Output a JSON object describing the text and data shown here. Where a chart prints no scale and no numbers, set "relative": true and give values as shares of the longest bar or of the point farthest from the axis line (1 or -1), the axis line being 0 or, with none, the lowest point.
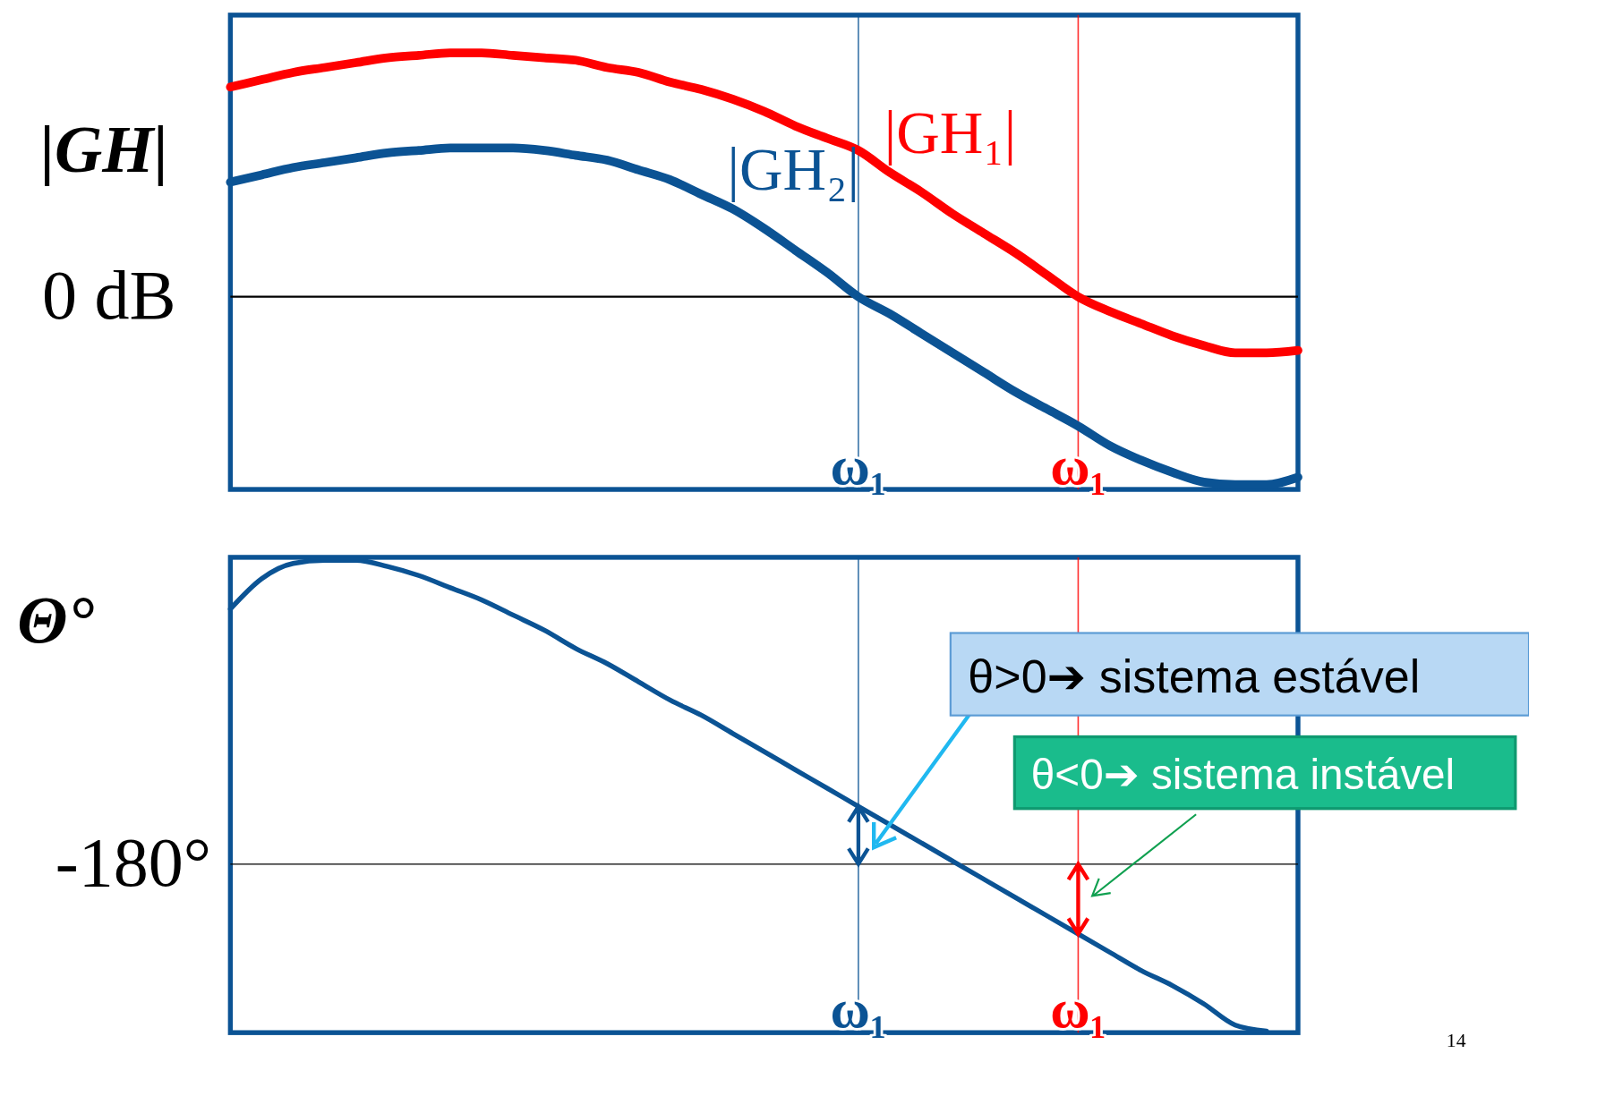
{
  "chart_data": [
    {
      "type": "line",
      "relative": true,
      "ylabel": "|GH|",
      "categories": [
        null,
        null,
        null,
        null,
        null,
        null,
        null,
        null,
        null,
        null,
        null,
        null,
        null,
        null,
        null,
        null,
        null,
        null,
        null,
        null,
        "ω₁",
        null,
        null,
        null,
        null,
        null,
        null,
        "ω₁",
        null,
        null,
        null,
        null,
        null,
        null,
        null
      ],
      "series": [
        {
          "name": "|GH₁|",
          "color": "#ff0000",
          "values": [
            0.86,
            0.89,
            0.92,
            0.94,
            0.96,
            0.98,
            0.99,
            1.0,
            1.0,
            0.99,
            0.98,
            0.97,
            0.94,
            0.92,
            0.88,
            0.85,
            0.81,
            0.76,
            0.7,
            0.65,
            0.6,
            0.51,
            0.43,
            0.34,
            0.26,
            0.18,
            0.09,
            0.0,
            -0.06,
            -0.11,
            -0.16,
            -0.2,
            -0.23,
            -0.23,
            -0.22
          ]
        },
        {
          "name": "|GH₂|",
          "color": "#0b5394",
          "values": [
            0.47,
            0.5,
            0.53,
            0.55,
            0.57,
            0.59,
            0.6,
            0.61,
            0.61,
            0.61,
            0.6,
            0.58,
            0.56,
            0.52,
            0.48,
            0.42,
            0.36,
            0.28,
            0.19,
            0.1,
            0.0,
            -0.07,
            -0.15,
            -0.23,
            -0.31,
            -0.39,
            -0.46,
            -0.53,
            -0.61,
            -0.67,
            -0.72,
            -0.76,
            -0.77,
            -0.77,
            -0.74
          ]
        }
      ],
      "annotations": [
        "0 dB"
      ]
    },
    {
      "type": "line",
      "relative": true,
      "ylabel": "Θ°",
      "categories": [
        null,
        null,
        null,
        null,
        null,
        null,
        null,
        null,
        null,
        null,
        null,
        null,
        null,
        null,
        null,
        null,
        null,
        null,
        null,
        null,
        "ω₁",
        null,
        null,
        null,
        null,
        null,
        null,
        "ω₁",
        null,
        null,
        null,
        null,
        null,
        null,
        null
      ],
      "series": [
        {
          "color": "#0b5394",
          "values": [
            0.84,
            0.94,
            0.99,
            1.0,
            1.0,
            0.98,
            0.95,
            0.91,
            0.87,
            0.82,
            0.77,
            0.71,
            0.66,
            0.6,
            0.54,
            0.49,
            0.43,
            0.37,
            0.31,
            0.25,
            0.19,
            0.13,
            0.07,
            0.01,
            -0.05,
            -0.11,
            -0.17,
            -0.23,
            -0.29,
            -0.35,
            -0.4,
            -0.46,
            -0.53,
            -0.55,
            null
          ]
        }
      ],
      "annotations": [
        "-180°",
        "θ>0➔ sistema estável",
        "θ<0➔ sistema instável",
        "14"
      ]
    }
  ]
}
